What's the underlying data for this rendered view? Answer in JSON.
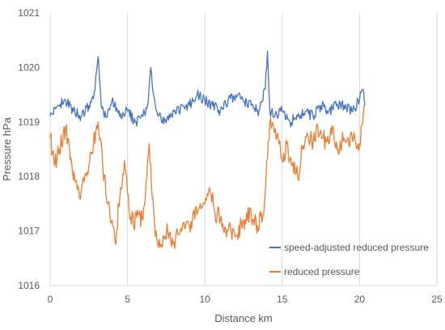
{
  "chart_data": {
    "type": "line",
    "xlabel": "Distance km",
    "ylabel": "Pressure hPa",
    "xlim": [
      0,
      25
    ],
    "ylim": [
      1016,
      1021
    ],
    "x_ticks": [
      "0",
      "5",
      "10",
      "15",
      "20",
      "25"
    ],
    "y_ticks": [
      "1016",
      "1017",
      "1018",
      "1019",
      "1020",
      "1021"
    ],
    "grid": "vertical",
    "legend_position": "bottom-right",
    "series": [
      {
        "name": "speed-adjusted reduced pressure",
        "color": "#4472C4",
        "x": [
          0,
          0.5,
          1,
          1.5,
          2,
          2.5,
          2.9,
          3.1,
          3.3,
          3.6,
          4,
          4.5,
          5,
          5.5,
          6,
          6.3,
          6.5,
          6.8,
          7.2,
          8,
          9,
          9.5,
          10,
          10.5,
          11,
          11.5,
          12,
          13,
          13.5,
          13.9,
          14.05,
          14.2,
          14.5,
          15,
          15.5,
          16,
          16.5,
          17,
          17.5,
          18,
          18.5,
          19,
          19.5,
          20,
          20.2,
          20.35
        ],
        "y": [
          1019.1,
          1019.3,
          1019.4,
          1019.2,
          1019.1,
          1019.3,
          1019.6,
          1020.2,
          1019.3,
          1019.1,
          1019.4,
          1019.1,
          1019.2,
          1019.0,
          1019.1,
          1019.3,
          1020.0,
          1019.3,
          1019.0,
          1019.2,
          1019.3,
          1019.5,
          1019.4,
          1019.3,
          1019.2,
          1019.4,
          1019.5,
          1019.3,
          1019.2,
          1019.6,
          1020.3,
          1019.2,
          1019.1,
          1019.2,
          1019.0,
          1019.1,
          1019.2,
          1019.1,
          1019.3,
          1019.2,
          1019.3,
          1019.3,
          1019.2,
          1019.4,
          1019.6,
          1019.3
        ]
      },
      {
        "name": "reduced pressure",
        "color": "#ED7D31",
        "x": [
          0,
          0.3,
          0.6,
          1,
          1.3,
          1.6,
          1.9,
          2.2,
          2.5,
          2.8,
          3.1,
          3.4,
          3.7,
          4,
          4.2,
          4.5,
          4.8,
          5.1,
          5.4,
          5.7,
          6,
          6.2,
          6.4,
          6.6,
          6.8,
          7,
          7.3,
          7.6,
          8,
          8.5,
          9,
          9.5,
          10,
          10.3,
          10.6,
          11,
          11.5,
          12,
          12.5,
          13,
          13.4,
          13.8,
          14,
          14.2,
          14.5,
          14.8,
          15,
          15.3,
          15.6,
          16,
          16.3,
          16.6,
          17,
          17.3,
          17.6,
          18,
          18.3,
          18.6,
          19,
          19.3,
          19.6,
          20,
          20.2,
          20.35
        ],
        "y": [
          1018.7,
          1018.2,
          1018.5,
          1018.9,
          1018.3,
          1017.9,
          1017.6,
          1017.9,
          1018.2,
          1018.6,
          1019.0,
          1018.2,
          1017.5,
          1017.2,
          1016.8,
          1017.6,
          1018.3,
          1017.4,
          1017.1,
          1017.3,
          1017.2,
          1017.9,
          1018.6,
          1017.6,
          1016.9,
          1016.7,
          1016.9,
          1017.0,
          1016.8,
          1017.0,
          1017.1,
          1017.3,
          1017.5,
          1017.8,
          1017.4,
          1017.2,
          1017.0,
          1016.9,
          1017.2,
          1017.3,
          1017.1,
          1017.3,
          1018.3,
          1019.0,
          1018.8,
          1018.6,
          1018.3,
          1018.6,
          1018.2,
          1018.0,
          1018.5,
          1018.8,
          1018.6,
          1018.9,
          1018.7,
          1018.6,
          1018.9,
          1018.5,
          1018.7,
          1018.6,
          1018.7,
          1018.6,
          1019.0,
          1019.3
        ]
      }
    ]
  }
}
